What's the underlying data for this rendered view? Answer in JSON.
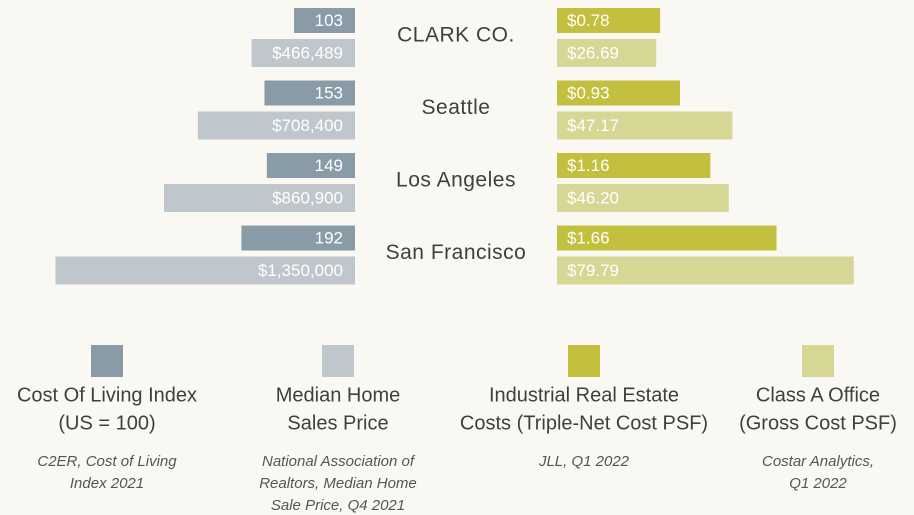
{
  "chart_data": {
    "type": "butterfly",
    "categories": [
      "CLARK CO.",
      "Seattle",
      "Los Angeles",
      "San Francisco"
    ],
    "series": [
      {
        "name": [
          "Cost Of Living Index",
          "(US = 100)"
        ],
        "color": "#8a9ba8",
        "side": "left",
        "xlim": [
          0,
          600
        ],
        "values": [
          103,
          153,
          149,
          192
        ],
        "value_labels": [
          "103",
          "153",
          "149",
          "192"
        ],
        "source": [
          "C2ER, Cost of Living",
          "Index 2021"
        ]
      },
      {
        "name": [
          "Median Home",
          "Sales Price"
        ],
        "color": "#bfc6cc",
        "side": "left",
        "xlim": [
          0,
          1600000
        ],
        "values": [
          466489,
          708400,
          860900,
          1350000
        ],
        "value_labels": [
          "$466,489",
          "$708,400",
          "$860,900",
          "$1,350,000"
        ],
        "source": [
          "National Association of",
          "Realtors, Median Home",
          "Sale Price, Q4 2021"
        ]
      },
      {
        "name": [
          "Industrial Real Estate",
          "Costs (Triple-Net Cost PSF)"
        ],
        "color": "#c2c03e",
        "side": "right",
        "xlim": [
          0,
          2.7
        ],
        "values": [
          0.78,
          0.93,
          1.16,
          1.66
        ],
        "value_labels": [
          "$0.78",
          "$0.93",
          "$1.16",
          "$1.66"
        ],
        "source": [
          "JLL, Q1  2022"
        ]
      },
      {
        "name": [
          "Class A Office",
          "(Gross Cost PSF)"
        ],
        "color": "#d6d795",
        "side": "right",
        "xlim": [
          0,
          96
        ],
        "values": [
          26.69,
          47.17,
          46.2,
          79.79
        ],
        "value_labels": [
          "$26.69",
          "$47.17",
          "$46.20",
          "$79.79"
        ],
        "source": [
          "Costar Analytics,",
          "Q1 2022"
        ]
      }
    ]
  }
}
